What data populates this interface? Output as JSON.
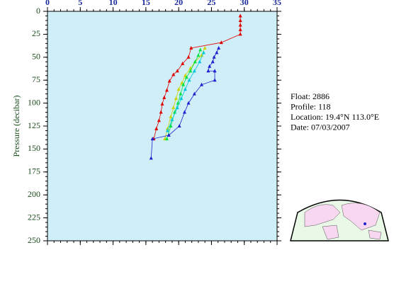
{
  "chart_data": {
    "type": "line",
    "ylabel": "Pressure (decibar)",
    "xlim": [
      0,
      35
    ],
    "xticks": [
      0,
      5,
      10,
      15,
      20,
      25,
      30,
      35
    ],
    "ylim": [
      250,
      0
    ],
    "yticks": [
      0,
      25,
      50,
      75,
      100,
      125,
      150,
      175,
      200,
      225,
      250
    ],
    "background": "#cfeef8",
    "series": [
      {
        "color": "#e00000",
        "x": [
          29.4,
          29.4,
          29.4,
          29.4,
          29.4,
          26.5,
          21.9,
          21.5,
          20.6,
          19.8,
          19.2,
          18.6,
          18.2,
          17.8,
          17.5,
          17.3,
          17.0,
          16.6,
          16.2
        ],
        "values": [
          5,
          10,
          15,
          20,
          25,
          34,
          40,
          50,
          57,
          65,
          69,
          76,
          86,
          94,
          101,
          110,
          119,
          128,
          139
        ]
      },
      {
        "color": "#c8d400",
        "x": [
          24.0,
          23.5,
          22.5,
          21.8,
          21.0,
          20.5,
          20.0,
          19.6,
          19.2,
          18.8,
          18.3,
          17.9
        ],
        "values": [
          40,
          48,
          55,
          62,
          70,
          78,
          85,
          95,
          105,
          115,
          128,
          139
        ]
      },
      {
        "color": "#00e040",
        "x": [
          23.3,
          23.0,
          22.5,
          21.8,
          21.2,
          20.7,
          20.3,
          19.9,
          19.4,
          18.8,
          18.2
        ],
        "values": [
          42,
          48,
          55,
          65,
          72,
          80,
          90,
          100,
          110,
          125,
          139
        ]
      },
      {
        "color": "#00c8d8",
        "x": [
          23.8,
          23.2,
          22.4,
          21.6,
          21.0,
          20.4,
          19.8,
          19.0,
          18.3
        ],
        "values": [
          45,
          55,
          65,
          75,
          85,
          95,
          105,
          118,
          130
        ]
      },
      {
        "color": "#2020d0",
        "x": [
          26.1,
          25.8,
          25.4,
          25.2,
          24.7,
          24.5,
          25.5,
          25.5,
          23.5,
          22.4,
          21.5,
          20.9,
          20.1,
          18.5,
          16.0,
          15.8
        ],
        "values": [
          40,
          45,
          50,
          55,
          60,
          65,
          65,
          75,
          80,
          90,
          100,
          110,
          125,
          135,
          139,
          160
        ]
      }
    ]
  },
  "info": [
    "Float:  2886",
    "Profile:  118",
    "Location:  19.4°N  113.0°E",
    "Date:  07/03/2007"
  ]
}
